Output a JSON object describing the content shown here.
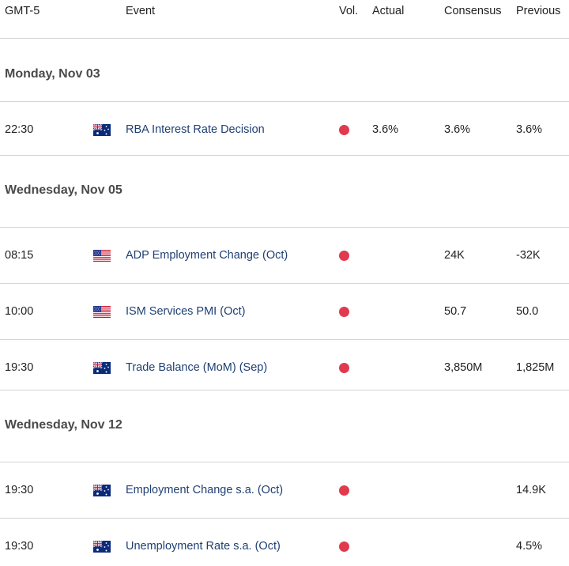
{
  "header": {
    "columns": [
      "GMT-5",
      "Event",
      "Vol.",
      "Actual",
      "Consensus",
      "Previous"
    ]
  },
  "groups": [
    {
      "date": "Monday, Nov 03",
      "rows": [
        {
          "time": "22:30",
          "event": "RBA Interest Rate Decision",
          "actual": "3.6%",
          "consensus": "3.6%",
          "previous": "3.6%"
        }
      ]
    },
    {
      "date": "Wednesday, Nov 05",
      "rows": [
        {
          "time": "08:15",
          "event": "ADP Employment Change (Oct)",
          "consensus": "24K",
          "previous": "-32K"
        },
        {
          "time": "10:00",
          "event": "ISM Services PMI (Oct)",
          "consensus": "50.7",
          "previous": "50.0"
        },
        {
          "time": "19:30",
          "event": "Trade Balance (MoM) (Sep)",
          "consensus": "3,850M",
          "previous": "1,825M"
        }
      ]
    },
    {
      "date": "Wednesday, Nov 12",
      "rows": [
        {
          "time": "19:30",
          "event": "Employment Change s.a. (Oct)",
          "previous": "14.9K"
        },
        {
          "time": "19:30",
          "event": "Unemployment Rate s.a. (Oct)",
          "previous": "4.5%"
        }
      ]
    }
  ]
}
